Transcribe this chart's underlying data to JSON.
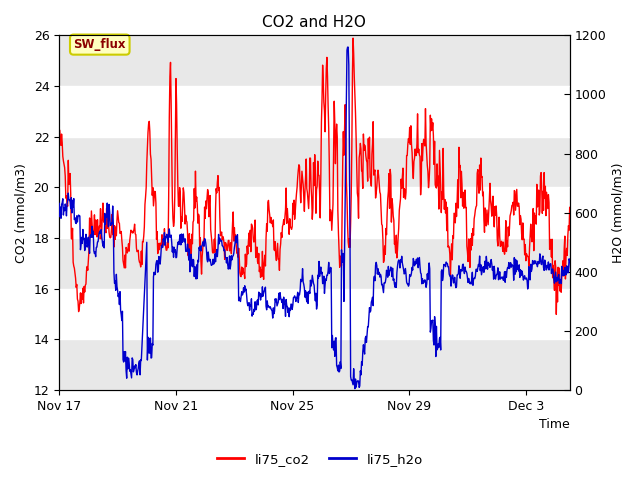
{
  "title": "CO2 and H2O",
  "xlabel": "Time",
  "ylabel_left": "CO2 (mmol/m3)",
  "ylabel_right": "H2O (mmol/m3)",
  "ylim_left": [
    12,
    26
  ],
  "ylim_right": [
    0,
    1200
  ],
  "yticks_left": [
    12,
    14,
    16,
    18,
    20,
    22,
    24,
    26
  ],
  "yticks_right": [
    0,
    200,
    400,
    600,
    800,
    1000,
    1200
  ],
  "xtick_labels": [
    "Nov 17",
    "Nov 21",
    "Nov 25",
    "Nov 29",
    "Dec 3"
  ],
  "xtick_positions": [
    0,
    4,
    8,
    12,
    16
  ],
  "xlim": [
    0,
    17.5
  ],
  "legend_labels": [
    "li75_co2",
    "li75_h2o"
  ],
  "annotation_text": "SW_flux",
  "annotation_color": "#8B0000",
  "annotation_bg": "#FFFFC0",
  "annotation_border": "#CCCC00",
  "plot_bg_light": "#FFFFFF",
  "plot_bg_dark": "#E8E8E8",
  "co2_color": "#FF0000",
  "h2o_color": "#0000CC",
  "linewidth": 1.0,
  "title_fontsize": 11,
  "axis_fontsize": 9,
  "tick_fontsize": 9
}
